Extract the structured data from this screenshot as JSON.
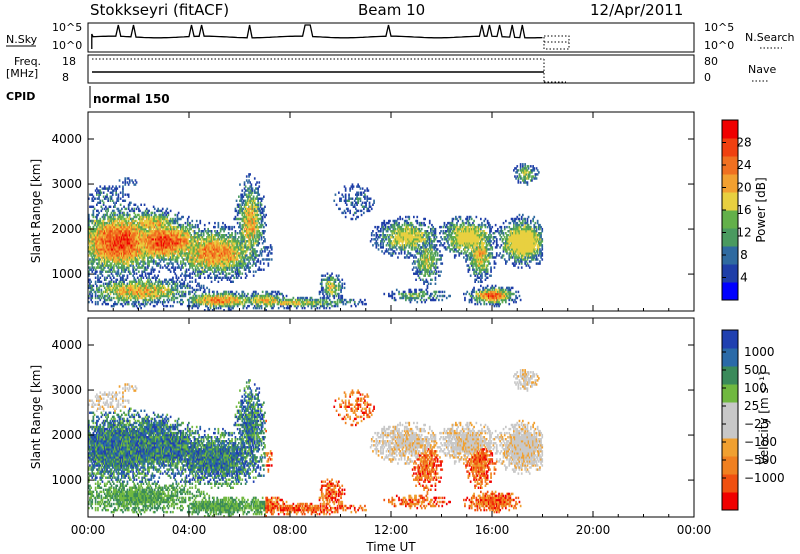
{
  "header": {
    "station": "Stokkseyri (fitACF)",
    "beam": "Beam 10",
    "date": "12/Apr/2011"
  },
  "status_panels": {
    "nsky_label": "N.Sky",
    "nsky_ticks": [
      "10^5",
      "10^0"
    ],
    "nsearch_label": "N.Search",
    "nsearch_ticks": [
      "10^5",
      "10^0"
    ],
    "freq_label": "Freq.",
    "freq_unit": "[MHz]",
    "freq_ticks": [
      "18",
      "8"
    ],
    "nave_label": "Nave",
    "nave_ticks": [
      "80",
      "0"
    ],
    "cpid_label": "CPID",
    "cpid_value": "normal 150"
  },
  "colors": {
    "power_scale": [
      "#0000ff",
      "#1f3ea8",
      "#2f6aa0",
      "#4a9a60",
      "#63b04a",
      "#e8d040",
      "#f2a030",
      "#f07020",
      "#f04010",
      "#f00000"
    ],
    "velocity_scale": [
      "#2040b0",
      "#2a6aa8",
      "#3a8a5a",
      "#70b840",
      "#c8c8c8",
      "#c8c8c8",
      "#f0a030",
      "#f08020",
      "#f05010",
      "#f00000"
    ]
  },
  "chart_data": [
    {
      "type": "heatmap",
      "name": "power",
      "ylabel": "Slant Range [km]",
      "y_ticks": [
        "1000",
        "2000",
        "3000",
        "4000"
      ],
      "y_tick_values": [
        1000,
        2000,
        3000,
        4000
      ],
      "ylim": [
        180,
        4600
      ],
      "xlim": [
        0,
        24
      ],
      "colorbar_label": "Power [dB]",
      "colorbar_ticks": [
        "4",
        "8",
        "12",
        "16",
        "20",
        "24",
        "28"
      ],
      "colorbar_range": [
        0,
        32
      ]
    },
    {
      "type": "heatmap",
      "name": "velocity",
      "ylabel": "Slant Range [km]",
      "y_ticks": [
        "1000",
        "2000",
        "3000",
        "4000"
      ],
      "y_tick_values": [
        1000,
        2000,
        3000,
        4000
      ],
      "ylim": [
        180,
        4600
      ],
      "xlim": [
        0,
        24
      ],
      "colorbar_label": "Velocity [m s⁻¹]",
      "colorbar_ticks": [
        "1000",
        "500",
        "100",
        "25",
        "−25",
        "−100",
        "−500",
        "−1000"
      ],
      "xlabel": "Time UT",
      "x_ticks": [
        "00:00",
        "04:00",
        "08:00",
        "12:00",
        "16:00",
        "20:00",
        "00:00"
      ],
      "x_tick_values": [
        0,
        4,
        8,
        12,
        16,
        20,
        24
      ]
    }
  ]
}
